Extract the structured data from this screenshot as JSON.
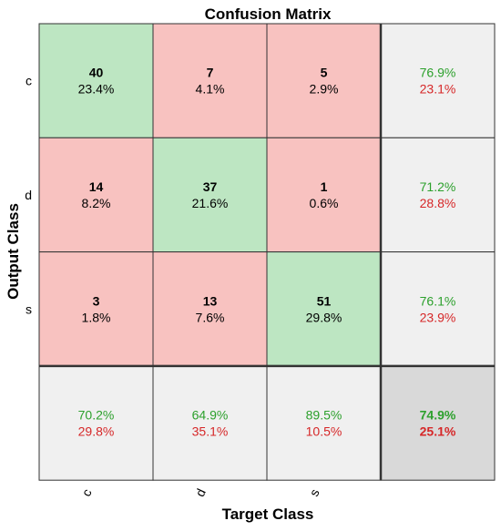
{
  "chart_data": {
    "type": "heatmap",
    "title": "Confusion Matrix",
    "xlabel": "Target Class",
    "ylabel": "Output Class",
    "target_classes": [
      "c",
      "d",
      "s"
    ],
    "output_classes": [
      "c",
      "d",
      "s"
    ],
    "counts": [
      [
        40,
        7,
        5
      ],
      [
        14,
        37,
        1
      ],
      [
        3,
        13,
        51
      ]
    ],
    "cell_percents": [
      [
        "23.4%",
        "4.1%",
        "2.9%"
      ],
      [
        "8.2%",
        "21.6%",
        "0.6%"
      ],
      [
        "1.8%",
        "7.6%",
        "29.8%"
      ]
    ],
    "row_summary": [
      {
        "correct": "76.9%",
        "incorrect": "23.1%"
      },
      {
        "correct": "71.2%",
        "incorrect": "28.8%"
      },
      {
        "correct": "76.1%",
        "incorrect": "23.9%"
      }
    ],
    "column_summary": [
      {
        "correct": "70.2%",
        "incorrect": "29.8%"
      },
      {
        "correct": "64.9%",
        "incorrect": "35.1%"
      },
      {
        "correct": "89.5%",
        "incorrect": "10.5%"
      }
    ],
    "overall": {
      "correct": "74.9%",
      "incorrect": "25.1%"
    },
    "colors": {
      "correct_cell": "#bde6c2",
      "incorrect_cell": "#f8c2c0",
      "summary_cell": "#f0f0f0",
      "overall_cell": "#d9d9d9",
      "correct_text": "#2ca02c",
      "incorrect_text": "#d62728"
    }
  }
}
